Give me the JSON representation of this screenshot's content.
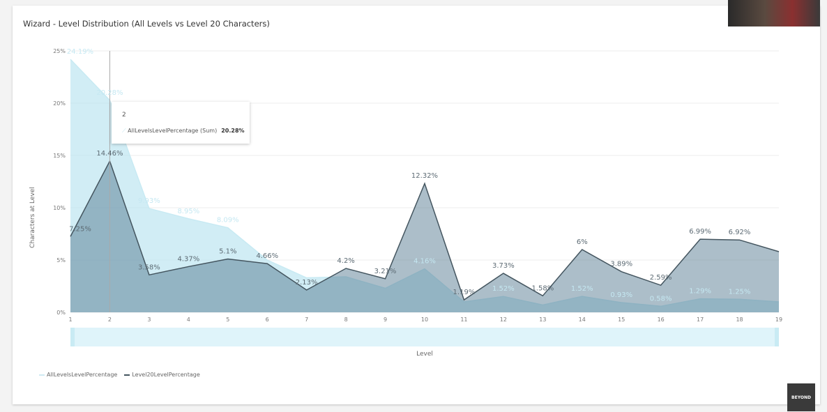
{
  "card_title": "Wizard - Level Distribution (All Levels vs Level 20 Characters)",
  "logo_text": "BEYOND",
  "tooltip": {
    "level": "2",
    "series": "AllLevelsLevelPercentage (Sum)",
    "value": "20.28%"
  },
  "chart_data": {
    "type": "area",
    "title": "Wizard - Level Distribution (All Levels vs Level 20 Characters)",
    "xlabel": "Level",
    "ylabel": "Characters at Level",
    "x": [
      1,
      2,
      3,
      4,
      5,
      6,
      7,
      8,
      9,
      10,
      11,
      12,
      13,
      14,
      15,
      16,
      17,
      18,
      19
    ],
    "ylim": [
      0,
      25
    ],
    "yticks": [
      "0%",
      "5%",
      "10%",
      "15%",
      "20%",
      "25%"
    ],
    "grid": true,
    "legend_position": "bottom-left",
    "series": [
      {
        "name": "AllLevelsLevelPercentage",
        "color": "#bfe6f1",
        "values": [
          24.19,
          20.28,
          9.93,
          8.95,
          8.09,
          5.0,
          3.3,
          3.4,
          2.3,
          4.16,
          1.0,
          1.52,
          0.7,
          1.52,
          0.93,
          0.58,
          1.29,
          1.25,
          1.0
        ],
        "labels": [
          "24.19%",
          "20.28%",
          "9.93%",
          "8.95%",
          "8.09%",
          null,
          null,
          null,
          null,
          "4.16%",
          null,
          "1.52%",
          null,
          "1.52%",
          "0.93%",
          "0.58%",
          "1.29%",
          "1.25%",
          null
        ]
      },
      {
        "name": "Level20LevelPercentage",
        "color": "#44555f",
        "values": [
          7.25,
          14.46,
          3.58,
          4.37,
          5.1,
          4.66,
          2.13,
          4.2,
          3.21,
          12.32,
          1.19,
          3.73,
          1.58,
          6,
          3.89,
          2.59,
          6.99,
          6.92,
          5.8
        ],
        "labels": [
          "7.25%",
          "14.46%",
          "3.58%",
          "4.37%",
          "5.1%",
          "4.66%",
          "2.13%",
          "4.2%",
          "3.21%",
          "12.32%",
          "1.19%",
          "3.73%",
          "1.58%",
          "6%",
          "3.89%",
          "2.59%",
          "6.99%",
          "6.92%",
          null
        ]
      }
    ]
  }
}
